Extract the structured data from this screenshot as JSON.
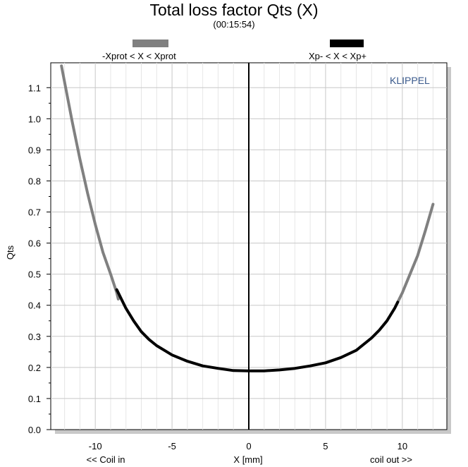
{
  "chart_data": {
    "type": "line",
    "title": "Total loss factor Qts (X)",
    "subtitle": "(00:15:54)",
    "xlabel": "X [mm]",
    "ylabel": "Qts",
    "x_hint_left": "<< Coil in",
    "x_hint_right": "coil out >>",
    "brand": "KLIPPEL",
    "xlim": [
      -12.9,
      12.9
    ],
    "ylim": [
      0.0,
      1.18
    ],
    "xticks": [
      -10,
      -5,
      0,
      5,
      10
    ],
    "yticks": [
      0.0,
      0.1,
      0.2,
      0.3,
      0.4,
      0.5,
      0.6,
      0.7,
      0.8,
      0.9,
      1.0,
      1.1
    ],
    "grid": true,
    "legend": [
      {
        "name": "-Xprot < X < Xprot",
        "color": "#808080"
      },
      {
        "name": "Xp- < X < Xp+",
        "color": "#000000"
      }
    ],
    "series": [
      {
        "name": "-Xprot < X < Xprot",
        "color": "#808080",
        "x": [
          -12.2,
          -11.5,
          -11.0,
          -10.5,
          -10.0,
          -9.5,
          -9.0,
          -8.6,
          -8.5
        ],
        "y": [
          1.17,
          0.99,
          0.87,
          0.76,
          0.66,
          0.57,
          0.5,
          0.44,
          0.42
        ]
      },
      {
        "name": "-Xprot < X < Xprot",
        "color": "#808080",
        "x": [
          9.7,
          10.0,
          10.5,
          11.0,
          11.5,
          12.0
        ],
        "y": [
          0.41,
          0.44,
          0.5,
          0.56,
          0.64,
          0.725
        ]
      },
      {
        "name": "Xp- < X < Xp+",
        "color": "#000000",
        "x": [
          -8.6,
          -8.0,
          -7.5,
          -7.0,
          -6.5,
          -6.0,
          -5.5,
          -5.0,
          -4.0,
          -3.0,
          -2.0,
          -1.0,
          0.0,
          1.0,
          2.0,
          3.0,
          4.0,
          5.0,
          6.0,
          7.0,
          8.0,
          8.5,
          9.0,
          9.5,
          9.7
        ],
        "y": [
          0.45,
          0.39,
          0.35,
          0.315,
          0.29,
          0.27,
          0.255,
          0.24,
          0.22,
          0.205,
          0.197,
          0.19,
          0.189,
          0.189,
          0.192,
          0.197,
          0.205,
          0.215,
          0.232,
          0.255,
          0.295,
          0.32,
          0.35,
          0.39,
          0.41
        ]
      }
    ],
    "zero_line_x": 0
  }
}
